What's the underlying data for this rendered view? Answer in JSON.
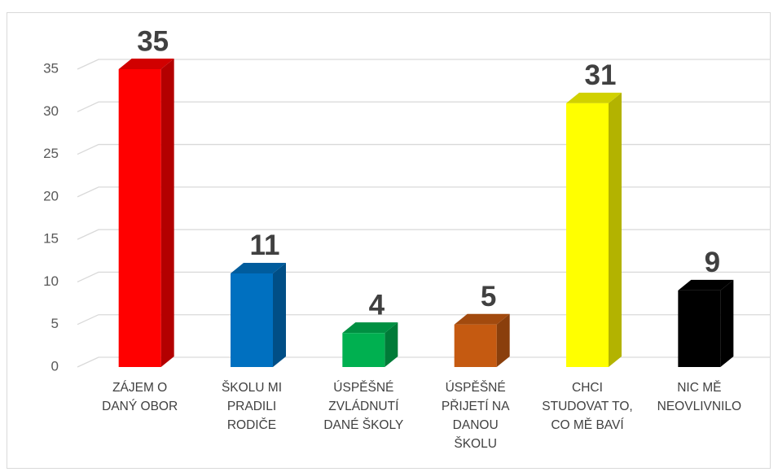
{
  "chart_data": {
    "type": "bar3d",
    "categories": [
      "ZÁJEM O DANÝ OBOR",
      "ŠKOLU MI PRADILI RODIČE",
      "ÚSPĚŠNÉ ZVLÁDNUTÍ DANÉ ŠKOLY",
      "ÚSPĚŠNÉ PŘIJETÍ NA DANOU ŠKOLU",
      "CHCI STUDOVAT TO, CO MĚ BAVÍ",
      "NIC MĚ NEOVLIVNILO"
    ],
    "values": [
      35,
      11,
      4,
      5,
      31,
      9
    ],
    "colors": [
      "#ff0000",
      "#0070c0",
      "#00b050",
      "#c55a11",
      "#ffff00",
      "#000000"
    ],
    "ylim": [
      0,
      35
    ],
    "yticks": [
      0,
      5,
      10,
      15,
      20,
      25,
      30,
      35
    ],
    "grid": true
  }
}
